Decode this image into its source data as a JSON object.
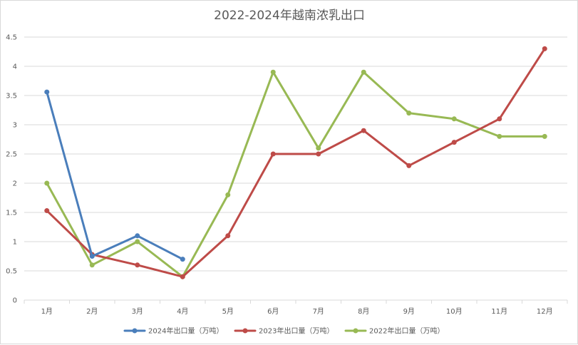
{
  "chart_data": {
    "type": "line",
    "title": "2022-2024年越南浓乳出口",
    "xlabel": "",
    "ylabel": "",
    "categories": [
      "1月",
      "2月",
      "3月",
      "4月",
      "5月",
      "6月",
      "7月",
      "8月",
      "9月",
      "10月",
      "11月",
      "12月"
    ],
    "ylim": [
      0,
      4.5
    ],
    "yticks": [
      "0",
      "0.5",
      "1",
      "1.5",
      "2",
      "2.5",
      "3",
      "3.5",
      "4",
      "4.5"
    ],
    "grid": true,
    "legend_position": "bottom",
    "series": [
      {
        "name": "2024年出口量（万吨）",
        "color": "#4a7ebb",
        "values": [
          3.56,
          0.75,
          1.1,
          0.7,
          null,
          null,
          null,
          null,
          null,
          null,
          null,
          null
        ]
      },
      {
        "name": "2023年出口量（万吨）",
        "color": "#be4b48",
        "values": [
          1.53,
          0.78,
          0.6,
          0.4,
          1.1,
          2.5,
          2.5,
          2.9,
          2.3,
          2.7,
          3.1,
          4.3
        ]
      },
      {
        "name": "2022年出口量（万吨）",
        "color": "#98b954",
        "values": [
          2.0,
          0.6,
          1.0,
          0.4,
          1.8,
          3.9,
          2.6,
          3.9,
          3.2,
          3.1,
          2.8,
          2.8
        ]
      }
    ]
  }
}
